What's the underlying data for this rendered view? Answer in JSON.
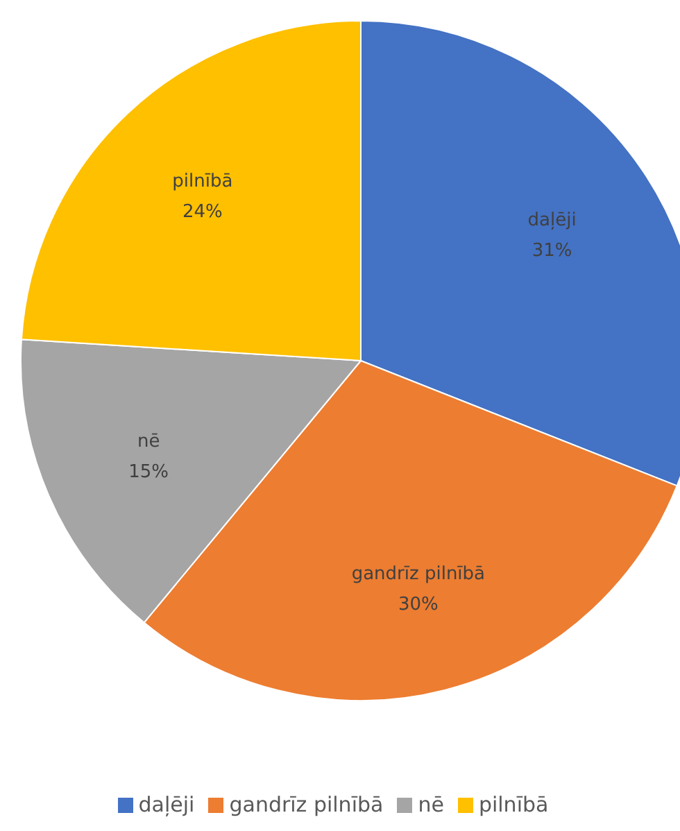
{
  "chart_data": {
    "type": "pie",
    "categories": [
      "daļēji",
      "gandrīz pilnībā",
      "nē",
      "pilnībā"
    ],
    "values": [
      31,
      30,
      15,
      24
    ],
    "colors": [
      "#4472c4",
      "#ed7d31",
      "#a5a5a5",
      "#ffc000"
    ],
    "value_labels": [
      "31%",
      "30%",
      "15%",
      "24%"
    ],
    "legend": "bottom"
  }
}
